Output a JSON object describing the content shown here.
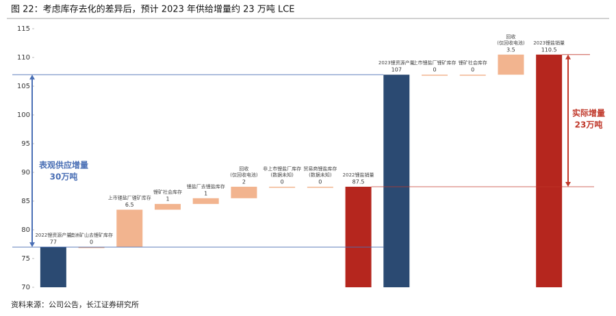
{
  "chart_data": {
    "type": "waterfall",
    "title": "图 22：考虑库存去化的差异后，预计 2023 年供给增量约 23 万吨 LCE",
    "source": "资料来源：公司公告，长江证券研究所",
    "categories": [
      "2022锂资源产量",
      "澳洲矿山去锂矿库存",
      "上市锂盐厂锂矿库存",
      "锂矿社会库存",
      "锂盐厂去锂盐库存",
      "回收\n(仅回收电池)",
      "非上市锂盐厂库存\n(数据未知)",
      "贸易商锂盐库存\n(数据未知)",
      "2022锂盐销量",
      "2023锂资源产量",
      "上市锂盐厂锂矿库存",
      "锂矿社会库存",
      "回收\n(仅回收电池)",
      "2023锂盐销量"
    ],
    "values": [
      77,
      0,
      6.5,
      1,
      1,
      2,
      0,
      0,
      87.5,
      107,
      0,
      0,
      3.5,
      110.5
    ],
    "measure": [
      "total",
      "relative",
      "relative",
      "relative",
      "relative",
      "relative",
      "relative",
      "relative",
      "total",
      "total",
      "relative",
      "relative",
      "relative",
      "total"
    ],
    "colors": [
      "#2b4a72",
      "#f2b48f",
      "#f2b48f",
      "#f2b48f",
      "#f2b48f",
      "#f2b48f",
      "#f2b48f",
      "#f2b48f",
      "#b5261e",
      "#2b4a72",
      "#f2b48f",
      "#f2b48f",
      "#f2b48f",
      "#b5261e"
    ],
    "ylim": [
      70,
      115
    ],
    "yticks": [
      70,
      75,
      80,
      85,
      90,
      95,
      100,
      105,
      110,
      115
    ],
    "annotations": [
      "表观供应增量\n30万吨",
      "实际增量\n23万吨"
    ]
  }
}
